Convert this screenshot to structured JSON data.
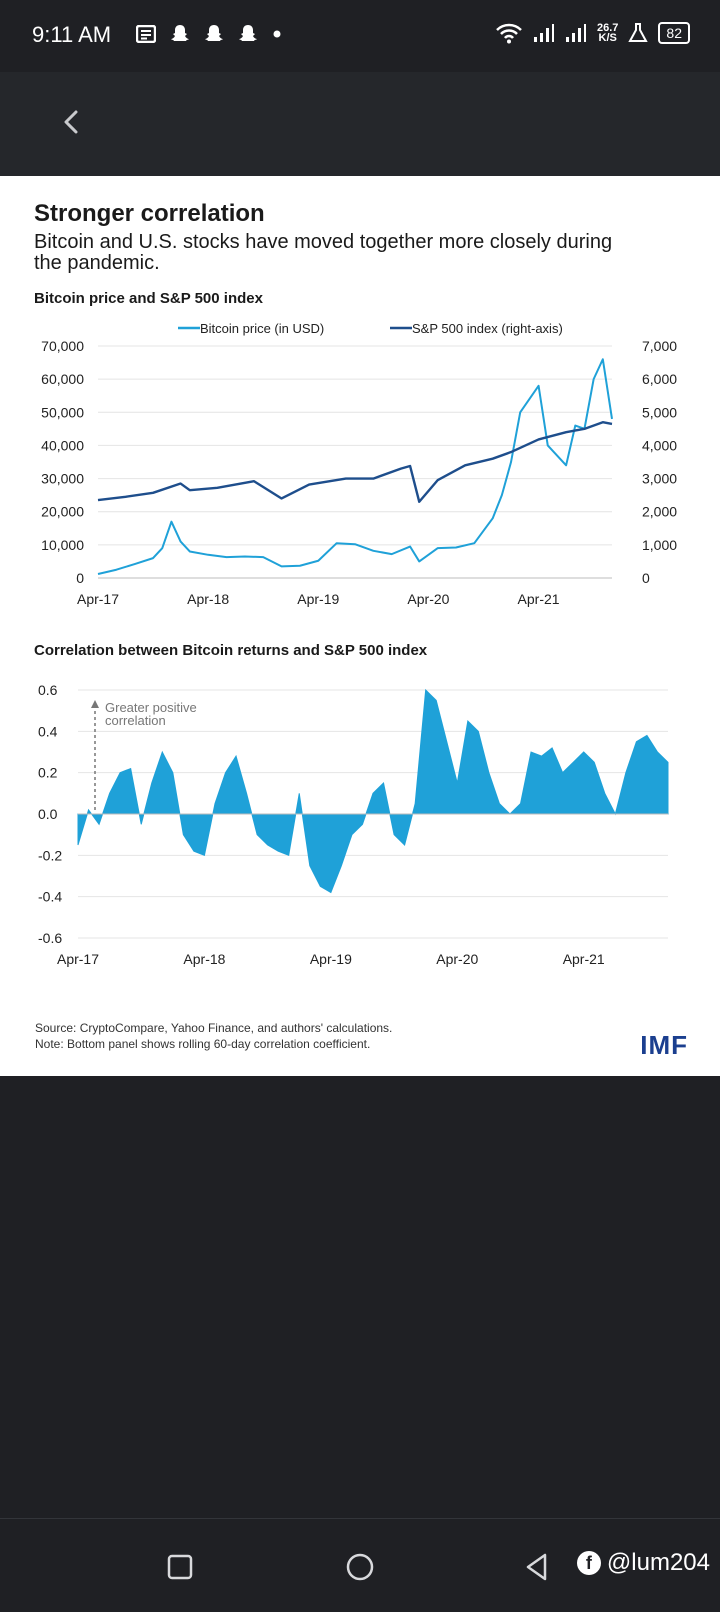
{
  "status_bar": {
    "time": "9:11 AM",
    "net_speed_value": "26.7",
    "net_speed_unit": "K/S",
    "battery": "82"
  },
  "article": {
    "headline": "Stronger correlation",
    "subhead": "Bitcoin and U.S. stocks have moved together more closely during the pandemic.",
    "source_note": "Source: CryptoCompare, Yahoo Finance, and authors' calculations.",
    "panel_note": "Note: Bottom panel shows rolling 60-day correlation coefficient.",
    "logo_text": "IMF"
  },
  "watermark": "@lum204",
  "chart_data": [
    {
      "type": "line",
      "title": "Bitcoin price and S&P 500 index",
      "x_ticks": [
        "Apr-17",
        "Apr-18",
        "Apr-19",
        "Apr-20",
        "Apr-21"
      ],
      "y_left_ticks": [
        "70,000",
        "60,000",
        "50,000",
        "40,000",
        "30,000",
        "20,000",
        "10,000",
        "0"
      ],
      "y_right_ticks": [
        "7,000",
        "6,000",
        "5,000",
        "4,000",
        "3,000",
        "2,000",
        "1,000",
        "0"
      ],
      "ylim_left": [
        0,
        70000
      ],
      "ylim_right": [
        0,
        7000
      ],
      "legend_position": "top-center",
      "series": [
        {
          "name": "Bitcoin price (in USD)",
          "axis": "left",
          "color": "#1fa1d8",
          "x": [
            "2017-04",
            "2017-06",
            "2017-08",
            "2017-10",
            "2017-11",
            "2017-12",
            "2018-01",
            "2018-02",
            "2018-04",
            "2018-06",
            "2018-08",
            "2018-10",
            "2018-12",
            "2019-02",
            "2019-04",
            "2019-06",
            "2019-08",
            "2019-10",
            "2019-12",
            "2020-02",
            "2020-03",
            "2020-05",
            "2020-07",
            "2020-09",
            "2020-11",
            "2020-12",
            "2021-01",
            "2021-02",
            "2021-04",
            "2021-05",
            "2021-07",
            "2021-08",
            "2021-09",
            "2021-10",
            "2021-11",
            "2021-12"
          ],
          "y": [
            1200,
            2500,
            4200,
            6000,
            9000,
            17000,
            11000,
            8000,
            7000,
            6300,
            6500,
            6300,
            3500,
            3700,
            5200,
            10500,
            10200,
            8200,
            7200,
            9500,
            5000,
            9000,
            9200,
            10500,
            18000,
            25000,
            35000,
            50000,
            58000,
            40000,
            34000,
            46000,
            45000,
            60000,
            66000,
            48000
          ]
        },
        {
          "name": "S&P 500 index (right-axis)",
          "axis": "right",
          "color": "#1e4e8c",
          "x": [
            "2017-04",
            "2017-07",
            "2017-10",
            "2018-01",
            "2018-02",
            "2018-05",
            "2018-09",
            "2018-12",
            "2019-03",
            "2019-07",
            "2019-10",
            "2020-01",
            "2020-02",
            "2020-03",
            "2020-05",
            "2020-08",
            "2020-11",
            "2021-01",
            "2021-04",
            "2021-07",
            "2021-09",
            "2021-11",
            "2021-12"
          ],
          "y": [
            2350,
            2450,
            2570,
            2850,
            2650,
            2720,
            2920,
            2400,
            2820,
            3000,
            3000,
            3300,
            3380,
            2300,
            2950,
            3400,
            3600,
            3800,
            4180,
            4400,
            4500,
            4700,
            4650
          ]
        }
      ]
    },
    {
      "type": "area",
      "title": "Correlation between Bitcoin returns and S&P 500 index",
      "annotation": "Greater positive correlation",
      "x_ticks": [
        "Apr-17",
        "Apr-18",
        "Apr-19",
        "Apr-20",
        "Apr-21"
      ],
      "y_ticks": [
        "0.6",
        "0.4",
        "0.2",
        "0.0",
        "-0.2",
        "-0.4",
        "-0.6"
      ],
      "ylim": [
        -0.6,
        0.6
      ],
      "series": [
        {
          "name": "",
          "color": "#1fa1d8",
          "x": [
            "2017-04",
            "2017-05",
            "2017-06",
            "2017-07",
            "2017-08",
            "2017-09",
            "2017-10",
            "2017-11",
            "2017-12",
            "2018-01",
            "2018-02",
            "2018-03",
            "2018-04",
            "2018-05",
            "2018-06",
            "2018-07",
            "2018-08",
            "2018-09",
            "2018-10",
            "2018-11",
            "2018-12",
            "2019-01",
            "2019-02",
            "2019-03",
            "2019-04",
            "2019-05",
            "2019-06",
            "2019-07",
            "2019-08",
            "2019-09",
            "2019-10",
            "2019-11",
            "2019-12",
            "2020-01",
            "2020-02",
            "2020-03",
            "2020-04",
            "2020-05",
            "2020-06",
            "2020-07",
            "2020-08",
            "2020-09",
            "2020-10",
            "2020-11",
            "2020-12",
            "2021-01",
            "2021-02",
            "2021-03",
            "2021-04",
            "2021-05",
            "2021-06",
            "2021-07",
            "2021-08",
            "2021-09",
            "2021-10",
            "2021-11",
            "2021-12"
          ],
          "y": [
            -0.15,
            0.02,
            -0.05,
            0.1,
            0.2,
            0.22,
            -0.05,
            0.15,
            0.3,
            0.2,
            -0.1,
            -0.18,
            -0.2,
            0.05,
            0.2,
            0.28,
            0.1,
            -0.1,
            -0.15,
            -0.18,
            -0.2,
            0.1,
            -0.25,
            -0.35,
            -0.38,
            -0.25,
            -0.1,
            -0.05,
            0.1,
            0.15,
            -0.1,
            -0.15,
            0.05,
            0.6,
            0.55,
            0.35,
            0.15,
            0.45,
            0.4,
            0.2,
            0.05,
            0.0,
            0.05,
            0.3,
            0.28,
            0.32,
            0.2,
            0.25,
            0.3,
            0.25,
            0.1,
            0.0,
            0.2,
            0.35,
            0.38,
            0.3,
            0.25
          ]
        }
      ]
    }
  ]
}
